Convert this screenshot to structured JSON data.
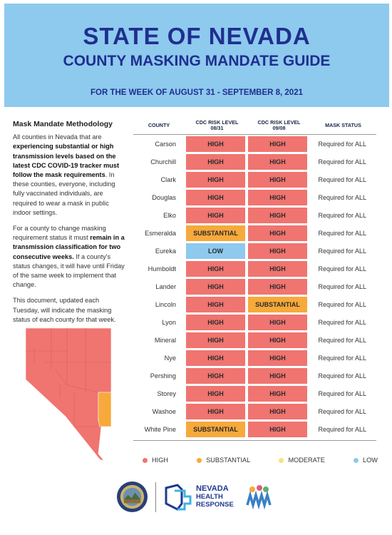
{
  "header": {
    "title": "STATE OF NEVADA",
    "subtitle": "COUNTY MASKING MANDATE GUIDE",
    "week": "FOR THE WEEK OF AUGUST 31 - SEPTEMBER 8, 2021"
  },
  "methodology": {
    "heading": "Mask Mandate Methodology",
    "p1_bold": "experiencing substantial or high transmission levels based on the latest CDC COVID-19 tracker must follow the mask requirements",
    "p1_a": "All counties in Nevada that are ",
    "p1_b": ". In these counties, everyone, including fully vaccinated individuals, are required to wear a mask in public indoor settings.",
    "p2_a": "For a county to change masking requirement status it must ",
    "p2_bold": "remain in a transmission classification for two consecutive weeks.",
    "p2_b": " If a county's status changes, it will have until Friday of the same week to implement that change.",
    "p3": "This document, updated each Tuesday, will indicate the masking status of each county for that week."
  },
  "table": {
    "headers": [
      "COUNTY",
      "CDC RISK LEVEL\n08/31",
      "CDC RISK LEVEL\n09/08",
      "MASK STATUS"
    ],
    "rows": [
      {
        "county": "Carson",
        "r1": "HIGH",
        "r2": "HIGH",
        "status": "Required for ALL"
      },
      {
        "county": "Churchill",
        "r1": "HIGH",
        "r2": "HIGH",
        "status": "Required for ALL"
      },
      {
        "county": "Clark",
        "r1": "HIGH",
        "r2": "HIGH",
        "status": "Required for ALL"
      },
      {
        "county": "Douglas",
        "r1": "HIGH",
        "r2": "HIGH",
        "status": "Required for ALL"
      },
      {
        "county": "Elko",
        "r1": "HIGH",
        "r2": "HIGH",
        "status": "Required for ALL"
      },
      {
        "county": "Esmeralda",
        "r1": "SUBSTANTIAL",
        "r2": "HIGH",
        "status": "Required for ALL"
      },
      {
        "county": "Eureka",
        "r1": "LOW",
        "r2": "HIGH",
        "status": "Required for ALL"
      },
      {
        "county": "Humboldt",
        "r1": "HIGH",
        "r2": "HIGH",
        "status": "Required for ALL"
      },
      {
        "county": "Lander",
        "r1": "HIGH",
        "r2": "HIGH",
        "status": "Required for ALL"
      },
      {
        "county": "Lincoln",
        "r1": "HIGH",
        "r2": "SUBSTANTIAL",
        "status": "Required for ALL"
      },
      {
        "county": "Lyon",
        "r1": "HIGH",
        "r2": "HIGH",
        "status": "Required for ALL"
      },
      {
        "county": "Mineral",
        "r1": "HIGH",
        "r2": "HIGH",
        "status": "Required for ALL"
      },
      {
        "county": "Nye",
        "r1": "HIGH",
        "r2": "HIGH",
        "status": "Required for ALL"
      },
      {
        "county": "Pershing",
        "r1": "HIGH",
        "r2": "HIGH",
        "status": "Required for ALL"
      },
      {
        "county": "Storey",
        "r1": "HIGH",
        "r2": "HIGH",
        "status": "Required for ALL"
      },
      {
        "county": "Washoe",
        "r1": "HIGH",
        "r2": "HIGH",
        "status": "Required for ALL"
      },
      {
        "county": "White Pine",
        "r1": "SUBSTANTIAL",
        "r2": "HIGH",
        "status": "Required for ALL"
      }
    ]
  },
  "legend": [
    {
      "label": "HIGH",
      "color": "#f07470"
    },
    {
      "label": "SUBSTANTIAL",
      "color": "#f7a93b"
    },
    {
      "label": "MODERATE",
      "color": "#f8e27c"
    },
    {
      "label": "LOW",
      "color": "#8ec9ee"
    }
  ],
  "colors": {
    "HIGH": "#f07470",
    "SUBSTANTIAL": "#f7a93b",
    "MODERATE": "#f8e27c",
    "LOW": "#8ec9ee",
    "header_bg": "#8ec9ee",
    "title": "#1f2f8f"
  },
  "logos": {
    "nhr_line1": "NEVADA",
    "nhr_line2": "HEALTH",
    "nhr_line3": "RESPONSE",
    "seal_icon": "nevada-state-seal-icon",
    "nhr_icon": "nevada-health-response-icon",
    "dhhs_icon": "dhhs-logo-icon"
  }
}
